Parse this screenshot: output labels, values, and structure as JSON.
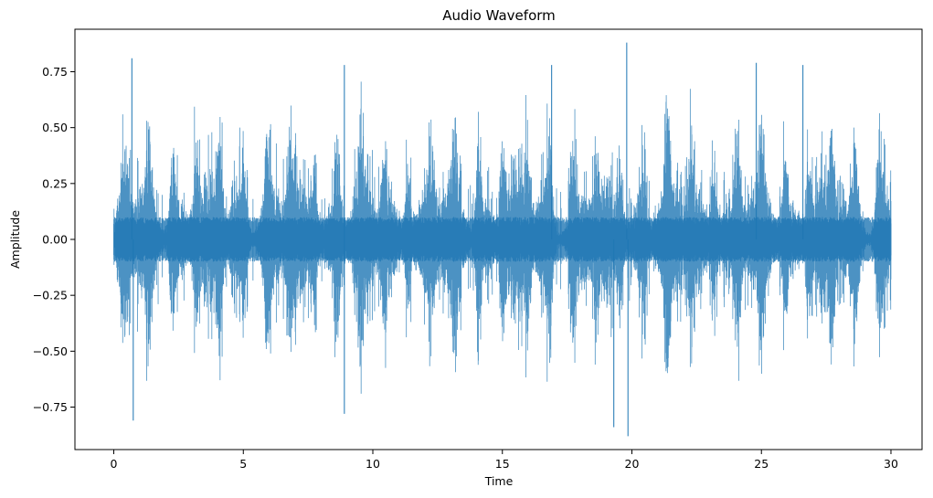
{
  "chart_data": {
    "type": "area",
    "title": "Audio Waveform",
    "xlabel": "Time",
    "ylabel": "Amplitude",
    "xlim": [
      -1.5,
      31.2
    ],
    "ylim": [
      -0.94,
      0.94
    ],
    "xticks": [
      0,
      5,
      10,
      15,
      20,
      25,
      30
    ],
    "xtick_labels": [
      "0",
      "5",
      "10",
      "15",
      "20",
      "25",
      "30"
    ],
    "yticks": [
      -0.75,
      -0.5,
      -0.25,
      0.0,
      0.25,
      0.5,
      0.75
    ],
    "ytick_labels": [
      "−0.75",
      "−0.50",
      "−0.25",
      "0.00",
      "0.25",
      "0.50",
      "0.75"
    ],
    "grid": false,
    "series": [
      {
        "color": "#1f77b4",
        "duration": 30.0,
        "peak_points": [
          {
            "x": 0.7,
            "y": 0.81
          },
          {
            "x": 0.75,
            "y": -0.81
          },
          {
            "x": 8.9,
            "y": 0.78
          },
          {
            "x": 8.9,
            "y": -0.78
          },
          {
            "x": 16.9,
            "y": 0.78
          },
          {
            "x": 19.3,
            "y": -0.84
          },
          {
            "x": 19.8,
            "y": 0.88
          },
          {
            "x": 19.85,
            "y": -0.88
          },
          {
            "x": 24.8,
            "y": 0.79
          },
          {
            "x": 26.6,
            "y": 0.78
          }
        ]
      }
    ]
  }
}
